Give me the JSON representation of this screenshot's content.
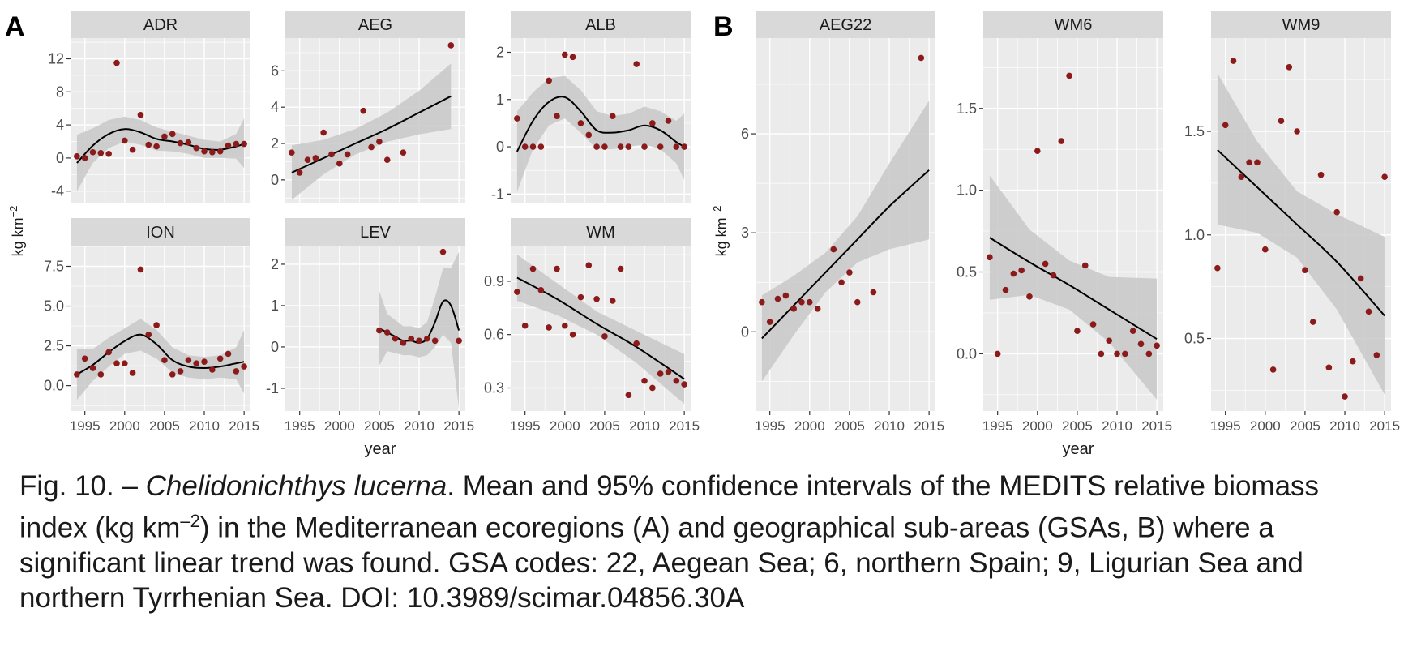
{
  "panel_labels": {
    "a": "A",
    "b": "B"
  },
  "axis_labels": {
    "y": "kg km",
    "y_sup": "−2",
    "x": "year"
  },
  "colors": {
    "point": "#8b1a1a",
    "band": "#c8c8c8",
    "panel_bg": "#ebebeb",
    "strip_bg": "#d9d9d9",
    "grid": "#ffffff",
    "line": "#000000"
  },
  "caption": {
    "prefix": "Fig. 10. – ",
    "species": "Chelidonichthys lucerna",
    "body": ". Mean and 95% confidence intervals of the MEDITS relative biomass index (kg km",
    "sup": "–2",
    "rest": ") in the Mediterranean ecoregions (A) and geographical sub-areas (GSAs, B) where a significant linear trend was found. GSA codes: 22, Aegean Sea; 6, northern Spain; 9, Ligurian Sea and northern Tyrrhenian Sea. DOI: 10.3989/scimar.04856.30A"
  },
  "chart_data": [
    {
      "type": "scatter",
      "title": "ADR",
      "xlim": [
        1993.2,
        2015.8
      ],
      "ylim": [
        -5.5,
        14.5
      ],
      "xticks": [
        1995,
        2000,
        2005,
        2010,
        2015
      ],
      "xtick_labels": [
        "1995",
        "2000",
        "2005",
        "2010",
        "2015"
      ],
      "yticks": [
        -4,
        0,
        4,
        8,
        12
      ],
      "ytick_labels": [
        "-4",
        "0",
        "4",
        "8",
        "12"
      ],
      "x": [
        1994,
        1995,
        1996,
        1997,
        1998,
        1999,
        2000,
        2001,
        2002,
        2003,
        2004,
        2005,
        2006,
        2007,
        2008,
        2009,
        2010,
        2011,
        2012,
        2013,
        2014,
        2015
      ],
      "y": [
        0.2,
        0.0,
        0.7,
        0.6,
        0.5,
        11.5,
        2.1,
        1.0,
        5.2,
        1.6,
        1.4,
        2.6,
        2.9,
        1.8,
        1.9,
        1.2,
        0.8,
        0.7,
        0.8,
        1.5,
        1.7,
        1.7
      ],
      "fit": {
        "x": [
          1994,
          1996,
          1998,
          2000,
          2002,
          2004,
          2006,
          2008,
          2010,
          2012,
          2014,
          2015
        ],
        "y": [
          -0.6,
          1.5,
          2.9,
          3.5,
          3.1,
          2.3,
          2.0,
          1.6,
          1.1,
          1.0,
          1.4,
          1.7
        ],
        "lower": [
          -4.0,
          -0.6,
          1.2,
          2.0,
          1.6,
          0.9,
          0.8,
          0.5,
          0.0,
          0.0,
          -0.1,
          -1.2
        ],
        "upper": [
          2.8,
          3.6,
          4.6,
          5.0,
          4.6,
          3.7,
          3.2,
          2.7,
          2.2,
          2.0,
          2.9,
          4.8
        ]
      }
    },
    {
      "type": "scatter",
      "title": "AEG",
      "xlim": [
        1993.2,
        2015.8
      ],
      "ylim": [
        -1.3,
        7.8
      ],
      "xticks": [
        1995,
        2000,
        2005,
        2010,
        2015
      ],
      "xtick_labels": [
        "1995",
        "2000",
        "2005",
        "2010",
        "2015"
      ],
      "yticks": [
        0,
        2,
        4,
        6
      ],
      "ytick_labels": [
        "0",
        "2",
        "4",
        "6"
      ],
      "x": [
        1994,
        1995,
        1996,
        1997,
        1998,
        1999,
        2000,
        2001,
        2003,
        2004,
        2005,
        2006,
        2008,
        2014
      ],
      "y": [
        1.5,
        0.4,
        1.1,
        1.2,
        2.6,
        1.4,
        0.9,
        1.4,
        3.8,
        1.8,
        2.1,
        1.1,
        1.5,
        7.4
      ],
      "fit": {
        "x": [
          1994,
          1998,
          2002,
          2006,
          2010,
          2014
        ],
        "y": [
          0.4,
          1.2,
          2.0,
          2.8,
          3.7,
          4.6
        ],
        "lower": [
          -1.1,
          0.3,
          1.4,
          2.1,
          2.5,
          2.8
        ],
        "upper": [
          1.9,
          2.2,
          2.8,
          3.7,
          4.9,
          6.4
        ]
      }
    },
    {
      "type": "scatter",
      "title": "ALB",
      "xlim": [
        1993.2,
        2015.8
      ],
      "ylim": [
        -1.2,
        2.3
      ],
      "xticks": [
        1995,
        2000,
        2005,
        2010,
        2015
      ],
      "xtick_labels": [
        "1995",
        "2000",
        "2005",
        "2010",
        "2015"
      ],
      "yticks": [
        -1,
        0,
        1,
        2
      ],
      "ytick_labels": [
        "-1",
        "0",
        "1",
        "2"
      ],
      "x": [
        1994,
        1995,
        1996,
        1997,
        1998,
        1999,
        2000,
        2001,
        2002,
        2003,
        2004,
        2005,
        2006,
        2007,
        2008,
        2009,
        2010,
        2011,
        2012,
        2013,
        2014,
        2015
      ],
      "y": [
        0.6,
        0.0,
        0.0,
        0.0,
        1.4,
        0.65,
        1.95,
        1.9,
        0.5,
        0.25,
        0.0,
        0.0,
        0.65,
        0.0,
        0.0,
        1.75,
        0.0,
        0.5,
        0.0,
        0.55,
        0.0,
        0.0
      ],
      "fit": {
        "x": [
          1994,
          1996,
          1998,
          2000,
          2002,
          2004,
          2006,
          2008,
          2010,
          2012,
          2014,
          2015
        ],
        "y": [
          -0.1,
          0.55,
          0.95,
          1.05,
          0.75,
          0.35,
          0.3,
          0.35,
          0.45,
          0.35,
          0.1,
          0.0
        ],
        "lower": [
          -0.95,
          -0.05,
          0.45,
          0.6,
          0.3,
          -0.05,
          -0.05,
          0.0,
          0.05,
          -0.05,
          -0.35,
          -0.7
        ],
        "upper": [
          0.75,
          1.15,
          1.45,
          1.5,
          1.2,
          0.75,
          0.65,
          0.7,
          0.85,
          0.75,
          0.55,
          0.7
        ]
      }
    },
    {
      "type": "scatter",
      "title": "ION",
      "xlim": [
        1993.2,
        2015.8
      ],
      "ylim": [
        -1.6,
        8.8
      ],
      "xticks": [
        1995,
        2000,
        2005,
        2010,
        2015
      ],
      "xtick_labels": [
        "1995",
        "2000",
        "2005",
        "2010",
        "2015"
      ],
      "yticks": [
        0,
        2.5,
        5,
        7.5
      ],
      "ytick_labels": [
        "0.0",
        "2.5",
        "5.0",
        "7.5"
      ],
      "x": [
        1994,
        1995,
        1996,
        1997,
        1998,
        1999,
        2000,
        2001,
        2002,
        2003,
        2004,
        2005,
        2006,
        2007,
        2008,
        2009,
        2010,
        2011,
        2012,
        2013,
        2014,
        2015
      ],
      "y": [
        0.7,
        1.7,
        1.1,
        0.7,
        2.1,
        1.4,
        1.4,
        0.8,
        7.3,
        3.2,
        3.8,
        1.6,
        0.7,
        0.9,
        1.6,
        1.4,
        1.5,
        1.0,
        1.7,
        2.0,
        0.9,
        1.2
      ],
      "fit": {
        "x": [
          1994,
          1996,
          1998,
          2000,
          2002,
          2004,
          2006,
          2008,
          2010,
          2012,
          2014,
          2015
        ],
        "y": [
          0.7,
          1.3,
          2.1,
          2.8,
          3.2,
          2.6,
          1.6,
          1.2,
          1.1,
          1.2,
          1.4,
          1.5
        ],
        "lower": [
          -0.9,
          0.3,
          1.2,
          2.0,
          2.2,
          1.7,
          0.8,
          0.5,
          0.4,
          0.5,
          0.4,
          -0.5
        ],
        "upper": [
          2.3,
          2.3,
          3.0,
          3.6,
          4.2,
          3.5,
          2.4,
          1.9,
          1.8,
          1.9,
          2.4,
          3.5
        ]
      }
    },
    {
      "type": "scatter",
      "title": "LEV",
      "xlim": [
        1993.2,
        2015.8
      ],
      "ylim": [
        -1.55,
        2.45
      ],
      "xticks": [
        1995,
        2000,
        2005,
        2010,
        2015
      ],
      "xtick_labels": [
        "1995",
        "2000",
        "2005",
        "2010",
        "2015"
      ],
      "yticks": [
        -1,
        0,
        1,
        2
      ],
      "ytick_labels": [
        "-1",
        "0",
        "1",
        "2"
      ],
      "x": [
        2005,
        2006,
        2007,
        2008,
        2009,
        2010,
        2011,
        2012,
        2013,
        2015
      ],
      "y": [
        0.4,
        0.35,
        0.2,
        0.1,
        0.2,
        0.15,
        0.2,
        0.15,
        2.3,
        0.15
      ],
      "fit": {
        "x": [
          2005,
          2006,
          2007,
          2008,
          2009,
          2010,
          2011,
          2012,
          2013,
          2014,
          2015
        ],
        "y": [
          0.45,
          0.35,
          0.25,
          0.15,
          0.15,
          0.1,
          0.2,
          0.6,
          1.1,
          1.0,
          0.4
        ],
        "lower": [
          -0.45,
          -0.1,
          -0.15,
          -0.2,
          -0.2,
          -0.25,
          -0.2,
          0.0,
          0.3,
          0.1,
          -1.5
        ],
        "upper": [
          1.35,
          0.8,
          0.65,
          0.5,
          0.5,
          0.45,
          0.6,
          1.2,
          1.9,
          1.9,
          2.3
        ]
      }
    },
    {
      "type": "scatter",
      "title": "WM",
      "xlim": [
        1993.2,
        2015.8
      ],
      "ylim": [
        0.17,
        1.1
      ],
      "xticks": [
        1995,
        2000,
        2005,
        2010,
        2015
      ],
      "xtick_labels": [
        "1995",
        "2000",
        "2005",
        "2010",
        "2015"
      ],
      "yticks": [
        0.3,
        0.6,
        0.9
      ],
      "ytick_labels": [
        "0.3",
        "0.6",
        "0.9"
      ],
      "x": [
        1994,
        1995,
        1996,
        1997,
        1998,
        1999,
        2000,
        2001,
        2002,
        2003,
        2004,
        2005,
        2006,
        2007,
        2008,
        2009,
        2010,
        2011,
        2012,
        2013,
        2014,
        2015
      ],
      "y": [
        0.84,
        0.65,
        0.97,
        0.85,
        0.64,
        0.97,
        0.65,
        0.6,
        0.81,
        0.99,
        0.8,
        0.59,
        0.79,
        0.97,
        0.26,
        0.55,
        0.34,
        0.3,
        0.38,
        0.39,
        0.34,
        0.32
      ],
      "fit": {
        "x": [
          1994,
          1999,
          2004,
          2009,
          2015
        ],
        "y": [
          0.92,
          0.8,
          0.66,
          0.53,
          0.35
        ],
        "lower": [
          0.79,
          0.71,
          0.6,
          0.44,
          0.21
        ],
        "upper": [
          1.05,
          0.89,
          0.73,
          0.62,
          0.49
        ]
      }
    },
    {
      "type": "scatter",
      "title": "AEG22",
      "xlim": [
        1993.2,
        2015.8
      ],
      "ylim": [
        -2.4,
        8.9
      ],
      "xticks": [
        1995,
        2000,
        2005,
        2010,
        2015
      ],
      "xtick_labels": [
        "1995",
        "2000",
        "2005",
        "2010",
        "2015"
      ],
      "yticks": [
        0,
        3,
        6
      ],
      "ytick_labels": [
        "0",
        "3",
        "6"
      ],
      "x": [
        1994,
        1995,
        1996,
        1997,
        1998,
        1999,
        2000,
        2001,
        2003,
        2004,
        2005,
        2006,
        2008,
        2014
      ],
      "y": [
        0.9,
        0.3,
        1.0,
        1.1,
        0.7,
        0.9,
        0.9,
        0.7,
        2.5,
        1.5,
        1.8,
        0.9,
        1.2,
        8.3
      ],
      "fit": {
        "x": [
          1994,
          1998,
          2002,
          2006,
          2010,
          2015
        ],
        "y": [
          -0.2,
          0.8,
          1.8,
          2.8,
          3.8,
          4.9
        ],
        "lower": [
          -1.5,
          -0.1,
          1.2,
          2.1,
          2.5,
          2.8
        ],
        "upper": [
          1.1,
          1.7,
          2.4,
          3.5,
          5.1,
          7.0
        ]
      }
    },
    {
      "type": "scatter",
      "title": "WM6",
      "xlim": [
        1993.2,
        2015.8
      ],
      "ylim": [
        -0.35,
        1.93
      ],
      "xticks": [
        1995,
        2000,
        2005,
        2010,
        2015
      ],
      "xtick_labels": [
        "1995",
        "2000",
        "2005",
        "2010",
        "2015"
      ],
      "yticks": [
        0,
        0.5,
        1,
        1.5
      ],
      "ytick_labels": [
        "0.0",
        "0.5",
        "1.0",
        "1.5"
      ],
      "x": [
        1994,
        1995,
        1996,
        1997,
        1998,
        1999,
        2000,
        2001,
        2002,
        2003,
        2004,
        2005,
        2006,
        2007,
        2008,
        2009,
        2010,
        2011,
        2012,
        2013,
        2014,
        2015
      ],
      "y": [
        0.59,
        0.0,
        0.39,
        0.49,
        0.51,
        0.35,
        1.24,
        0.55,
        0.48,
        1.3,
        1.7,
        0.14,
        0.54,
        0.18,
        0.0,
        0.08,
        0.0,
        0.0,
        0.14,
        0.06,
        0.0,
        0.05
      ],
      "fit": {
        "x": [
          1994,
          1999,
          2004,
          2009,
          2015
        ],
        "y": [
          0.71,
          0.56,
          0.42,
          0.27,
          0.09
        ],
        "lower": [
          0.33,
          0.36,
          0.27,
          0.07,
          -0.28
        ],
        "upper": [
          1.09,
          0.76,
          0.57,
          0.47,
          0.46
        ]
      }
    },
    {
      "type": "scatter",
      "title": "WM9",
      "xlim": [
        1993.2,
        2015.8
      ],
      "ylim": [
        0.15,
        1.95
      ],
      "xticks": [
        1995,
        2000,
        2005,
        2010,
        2015
      ],
      "xtick_labels": [
        "1995",
        "2000",
        "2005",
        "2010",
        "2015"
      ],
      "yticks": [
        0.5,
        1,
        1.5
      ],
      "ytick_labels": [
        "0.5",
        "1.0",
        "1.5"
      ],
      "x": [
        1994,
        1995,
        1996,
        1997,
        1998,
        1999,
        2000,
        2001,
        2002,
        2003,
        2004,
        2005,
        2006,
        2007,
        2008,
        2009,
        2010,
        2011,
        2012,
        2013,
        2014,
        2015
      ],
      "y": [
        0.84,
        1.53,
        1.84,
        1.28,
        1.35,
        1.35,
        0.93,
        0.35,
        1.55,
        1.81,
        1.5,
        0.83,
        0.58,
        1.29,
        0.36,
        1.11,
        0.22,
        0.39,
        0.79,
        0.63,
        0.42,
        1.28
      ],
      "fit": {
        "x": [
          1994,
          1999,
          2004,
          2009,
          2015
        ],
        "y": [
          1.41,
          1.23,
          1.05,
          0.87,
          0.61
        ],
        "lower": [
          1.05,
          1.01,
          0.89,
          0.64,
          0.23
        ],
        "upper": [
          1.78,
          1.45,
          1.21,
          1.1,
          0.99
        ]
      }
    }
  ]
}
